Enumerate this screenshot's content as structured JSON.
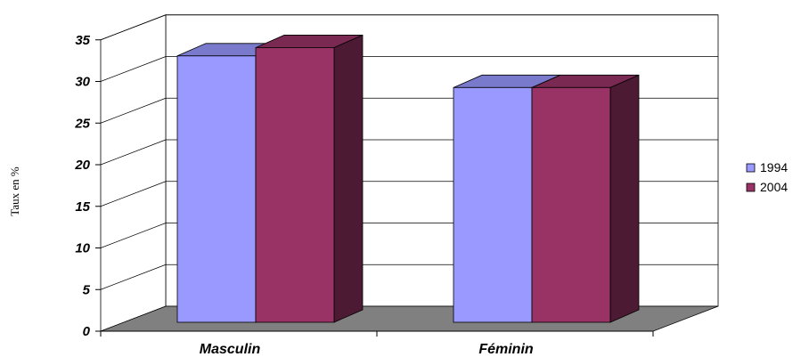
{
  "chart_data": {
    "type": "bar",
    "title": "",
    "xlabel": "",
    "ylabel": "Taux en %",
    "categories": [
      "Masculin",
      "Féminin"
    ],
    "series": [
      {
        "name": "1994",
        "values": [
          32,
          28.2
        ],
        "color": "#9999ff"
      },
      {
        "name": "2004",
        "values": [
          33,
          28.2
        ],
        "color": "#993366"
      }
    ],
    "ylim": [
      0,
      35
    ],
    "yticks": [
      "0",
      "5",
      "10",
      "15",
      "20",
      "25",
      "30",
      "35"
    ],
    "grid": true,
    "style": "3d",
    "floor_color": "#808080",
    "legend_position": "right"
  }
}
